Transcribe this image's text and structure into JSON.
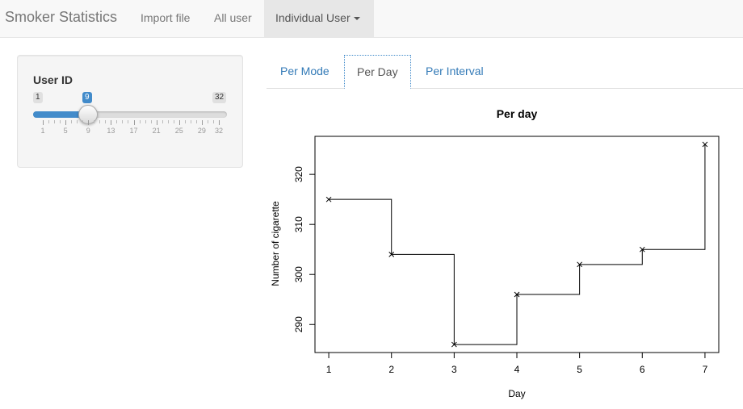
{
  "navbar": {
    "brand": "Smoker Statistics",
    "items": [
      "Import file",
      "All user",
      "Individual User"
    ]
  },
  "sidebar": {
    "label": "User ID",
    "slider": {
      "min": 1,
      "max": 32,
      "value": 9,
      "ticks": [
        1,
        5,
        9,
        13,
        17,
        21,
        25,
        29,
        32
      ]
    }
  },
  "tabs": [
    "Per Mode",
    "Per Day",
    "Per Interval"
  ],
  "active_tab": "Per Day",
  "chart_data": {
    "type": "line",
    "step": true,
    "marker": "x",
    "title": "Per day",
    "xlabel": "Day",
    "ylabel": "Number of cigarette",
    "x": [
      1,
      2,
      3,
      4,
      5,
      6,
      7
    ],
    "y": [
      315,
      304,
      286,
      296,
      302,
      305,
      326
    ],
    "xticks": [
      1,
      2,
      3,
      4,
      5,
      6,
      7
    ],
    "yticks": [
      290,
      300,
      310,
      320
    ],
    "xlim": [
      0.78,
      7.22
    ],
    "ylim": [
      284.4,
      327.6
    ],
    "color": "#000000"
  }
}
